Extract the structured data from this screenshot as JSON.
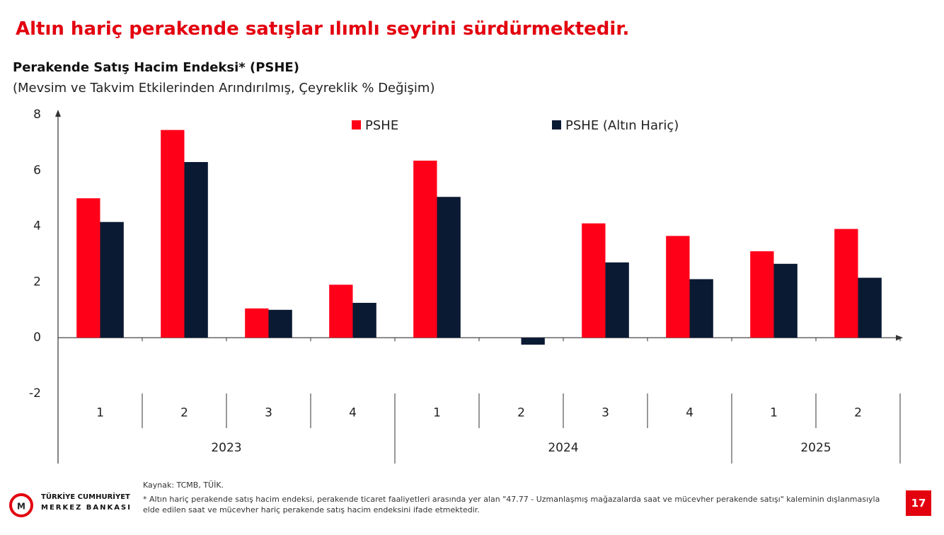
{
  "header": {
    "title": "Altın hariç perakende satışlar ılımlı seyrini sürdürmektedir."
  },
  "chart_data": {
    "type": "bar",
    "title": "Perakende Satış Hacim Endeksi* (PSHE)",
    "subtitle": "(Mevsim ve Takvim Etkilerinden Arındırılmış, Çeyreklik % Değişim)",
    "category_groups": [
      {
        "label": "2023",
        "categories": [
          "1",
          "2",
          "3",
          "4"
        ]
      },
      {
        "label": "2024",
        "categories": [
          "1",
          "2",
          "3",
          "4"
        ]
      },
      {
        "label": "2025",
        "categories": [
          "1",
          "2"
        ]
      }
    ],
    "series": [
      {
        "name": "PSHE",
        "color": "#ff0019",
        "values": [
          5.0,
          7.45,
          1.05,
          1.9,
          6.35,
          0,
          4.1,
          3.65,
          3.1,
          3.9
        ]
      },
      {
        "name": "PSHE (Altın Hariç)",
        "color": "#0b1a33",
        "values": [
          4.15,
          6.3,
          1.0,
          1.25,
          5.05,
          -0.25,
          2.7,
          2.1,
          2.65,
          2.15
        ]
      }
    ],
    "ylim": [
      -2,
      8
    ],
    "yticks": [
      -2,
      0,
      2,
      4,
      6,
      8
    ],
    "grid": false
  },
  "footer": {
    "source": "Kaynak: TCMB, TÜİK.",
    "note": "* Altın hariç perakende satış hacim endeksi, perakende ticaret faaliyetleri arasında yer alan \"47.77 - Uzmanlaşmış mağazalarda saat ve mücevher perakende satışı\" kaleminin dışlanmasıyla elde edilen saat ve mücevher hariç perakende satış hacim endeksini ifade etmektedir.",
    "logo_line1": "TÜRKİYE CUMHURİYET",
    "logo_line2": "MERKEZ BANKASI",
    "page": "17"
  }
}
